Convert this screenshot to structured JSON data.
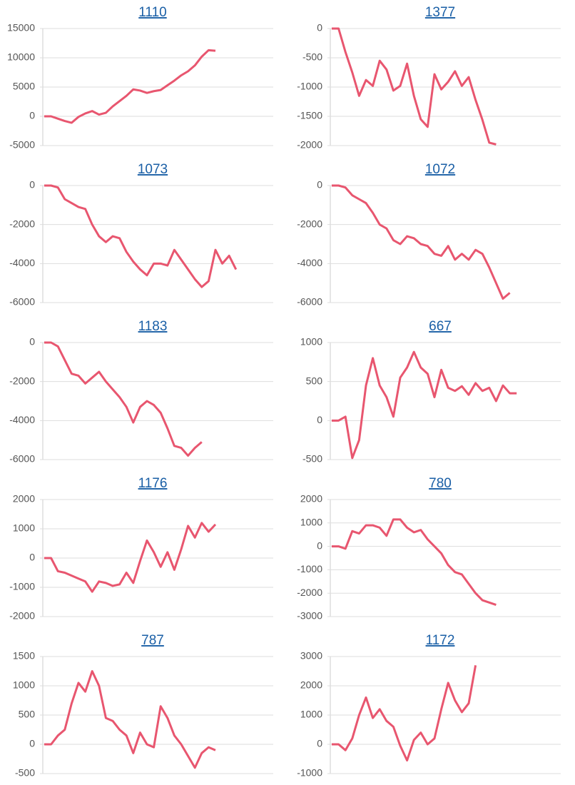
{
  "chart_data": [
    {
      "type": "line",
      "title": "1110",
      "color": "#e8566f",
      "ylim": [
        -5000,
        15000
      ],
      "yticks": [
        -5000,
        0,
        5000,
        10000,
        15000
      ],
      "values": [
        0,
        0,
        -400,
        -800,
        -1100,
        -100,
        500,
        900,
        300,
        600,
        1700,
        2600,
        3500,
        4600,
        4400,
        4000,
        4300,
        4500,
        5300,
        6100,
        7000,
        7700,
        8700,
        10200,
        11300,
        11200
      ]
    },
    {
      "type": "line",
      "title": "1377",
      "color": "#e8566f",
      "ylim": [
        -2000,
        0
      ],
      "yticks": [
        -2000,
        -1500,
        -1000,
        -500,
        0
      ],
      "values": [
        0,
        0,
        -400,
        -750,
        -1150,
        -880,
        -980,
        -550,
        -700,
        -1060,
        -980,
        -600,
        -1150,
        -1550,
        -1680,
        -780,
        -1040,
        -910,
        -730,
        -980,
        -830,
        -1220,
        -1560,
        -1950,
        -1980
      ]
    },
    {
      "type": "line",
      "title": "1073",
      "color": "#e8566f",
      "ylim": [
        -6000,
        0
      ],
      "yticks": [
        -6000,
        -4000,
        -2000,
        0
      ],
      "values": [
        0,
        0,
        -100,
        -700,
        -900,
        -1100,
        -1200,
        -2000,
        -2600,
        -2900,
        -2600,
        -2700,
        -3400,
        -3900,
        -4300,
        -4600,
        -4000,
        -4000,
        -4100,
        -3300,
        -3800,
        -4300,
        -4800,
        -5200,
        -4900,
        -3300,
        -4000,
        -3600,
        -4300
      ]
    },
    {
      "type": "line",
      "title": "1072",
      "color": "#e8566f",
      "ylim": [
        -6000,
        0
      ],
      "yticks": [
        -6000,
        -4000,
        -2000,
        0
      ],
      "values": [
        0,
        0,
        -100,
        -500,
        -700,
        -900,
        -1400,
        -2000,
        -2200,
        -2800,
        -3000,
        -2600,
        -2700,
        -3000,
        -3100,
        -3500,
        -3600,
        -3100,
        -3800,
        -3500,
        -3800,
        -3300,
        -3500,
        -4200,
        -5000,
        -5800,
        -5500
      ]
    },
    {
      "type": "line",
      "title": "1183",
      "color": "#e8566f",
      "ylim": [
        -6000,
        0
      ],
      "yticks": [
        -6000,
        -4000,
        -2000,
        0
      ],
      "values": [
        0,
        0,
        -200,
        -900,
        -1600,
        -1700,
        -2100,
        -1800,
        -1500,
        -2000,
        -2400,
        -2800,
        -3300,
        -4100,
        -3300,
        -3000,
        -3200,
        -3600,
        -4400,
        -5300,
        -5400,
        -5800,
        -5400,
        -5100
      ]
    },
    {
      "type": "line",
      "title": "667",
      "color": "#e8566f",
      "ylim": [
        -500,
        1000
      ],
      "yticks": [
        -500,
        0,
        500,
        1000
      ],
      "values": [
        0,
        0,
        50,
        -480,
        -250,
        450,
        800,
        450,
        300,
        50,
        550,
        680,
        880,
        680,
        600,
        300,
        650,
        420,
        380,
        440,
        330,
        480,
        380,
        420,
        250,
        450,
        350,
        350
      ]
    },
    {
      "type": "line",
      "title": "1176",
      "color": "#e8566f",
      "ylim": [
        -2000,
        2000
      ],
      "yticks": [
        -2000,
        -1000,
        0,
        1000,
        2000
      ],
      "values": [
        0,
        0,
        -450,
        -500,
        -600,
        -700,
        -800,
        -1150,
        -800,
        -850,
        -950,
        -900,
        -500,
        -850,
        -100,
        600,
        200,
        -300,
        200,
        -400,
        300,
        1100,
        700,
        1200,
        900,
        1150
      ]
    },
    {
      "type": "line",
      "title": "780",
      "color": "#e8566f",
      "ylim": [
        -3000,
        2000
      ],
      "yticks": [
        -3000,
        -2000,
        -1000,
        0,
        1000,
        2000
      ],
      "values": [
        0,
        0,
        -100,
        650,
        550,
        900,
        900,
        800,
        450,
        1150,
        1150,
        800,
        600,
        700,
        300,
        0,
        -300,
        -800,
        -1100,
        -1200,
        -1600,
        -2000,
        -2300,
        -2400,
        -2500
      ]
    },
    {
      "type": "line",
      "title": "787",
      "color": "#e8566f",
      "ylim": [
        -500,
        1500
      ],
      "yticks": [
        -500,
        0,
        500,
        1000,
        1500
      ],
      "values": [
        0,
        0,
        150,
        250,
        700,
        1050,
        900,
        1250,
        1000,
        450,
        400,
        250,
        150,
        -150,
        200,
        0,
        -50,
        650,
        450,
        150,
        0,
        -200,
        -400,
        -150,
        -50,
        -100
      ]
    },
    {
      "type": "line",
      "title": "1172",
      "color": "#e8566f",
      "ylim": [
        -1000,
        3000
      ],
      "yticks": [
        -1000,
        0,
        1000,
        2000,
        3000
      ],
      "values": [
        0,
        0,
        -200,
        200,
        1000,
        1600,
        900,
        1200,
        800,
        600,
        -50,
        -550,
        150,
        400,
        0,
        200,
        1200,
        2100,
        1500,
        1100,
        1400,
        2700
      ]
    }
  ]
}
